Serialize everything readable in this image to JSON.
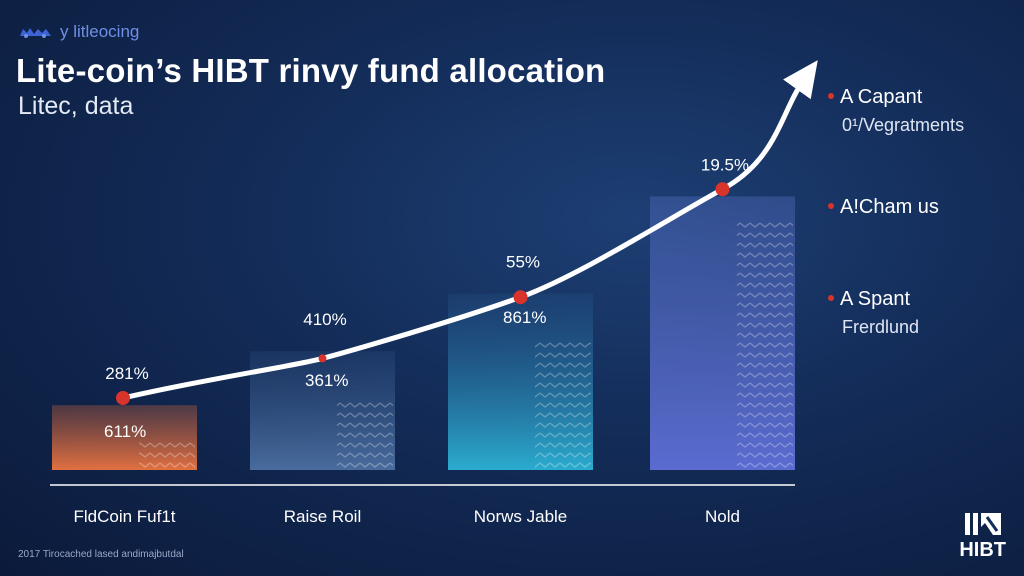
{
  "brand": {
    "text": "y litleocing"
  },
  "header": {
    "title": "Lite-coin’s HIBT rinvy fund allocation",
    "subtitle": "Litec, data"
  },
  "legend": {
    "items": [
      {
        "name": "A Capant",
        "sub": "0¹/Vegratments",
        "color": "#d9342b"
      },
      {
        "name": "A!Cham us",
        "sub": "",
        "color": "#d9342b"
      },
      {
        "name": "A Spant",
        "sub": "Frerdlund",
        "color": "#d9342b"
      }
    ]
  },
  "footer": {
    "note": "2017 Tirocached lased andimajbutdal",
    "logo": "HIBT"
  },
  "chart_data": {
    "type": "bar",
    "categories": [
      "FldCoin Fuf1t",
      "Raise Roil",
      "Norws Jable",
      "Nold"
    ],
    "series": [
      {
        "values": [
          18,
          33,
          49,
          76
        ],
        "color": "#cf6a3f"
      },
      {
        "values": [
          9,
          20,
          36,
          70
        ],
        "color": "#d9c2b0"
      }
    ],
    "bar_labels": [
      "281%",
      "410%",
      "55%",
      "19.5%"
    ],
    "inner_labels": [
      "611%",
      "361%",
      "861%",
      ""
    ],
    "trend_line": {
      "values": [
        20,
        31,
        48,
        78
      ],
      "color": "#ffffff",
      "marker_color": "#d9342b",
      "arrow": true
    },
    "ylim": [
      0,
      100
    ],
    "grid": false,
    "legend_position": "right"
  }
}
